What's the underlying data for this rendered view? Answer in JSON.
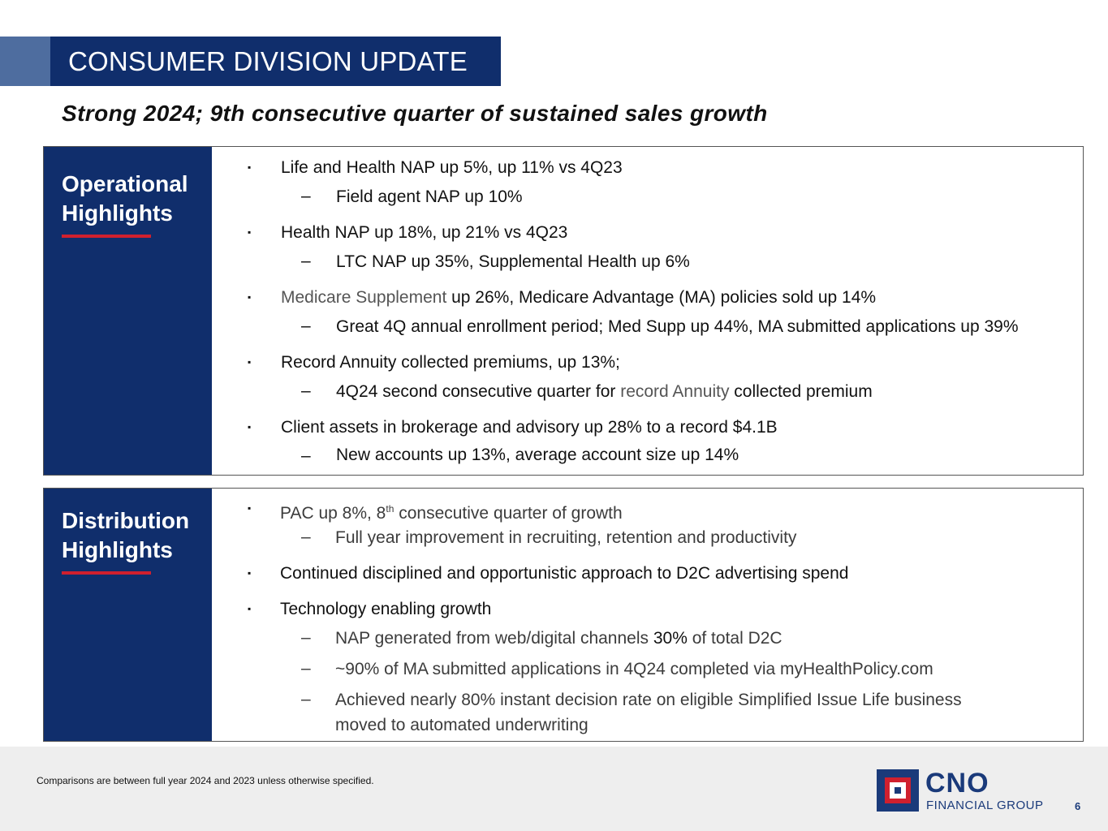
{
  "slide": {
    "title": "CONSUMER DIVISION UPDATE",
    "subtitle": "Strong 2024; 9th consecutive quarter of sustained sales growth"
  },
  "operational": {
    "heading_line1": "Operational",
    "heading_line2": "Highlights",
    "bullet_glyph": "▪",
    "dash_glyph": "–",
    "items": [
      {
        "text": "Life and Health NAP up 5%, up 11% vs 4Q23",
        "sub": [
          "Field agent NAP up 10%"
        ]
      },
      {
        "text": "Health NAP up 18%, up 21% vs 4Q23",
        "sub": [
          "LTC NAP up 35%, Supplemental Health up 6%"
        ]
      },
      {
        "text_gray": "Medicare Supplement",
        "text": " up 26%, Medicare Advantage (MA) policies sold up 14%",
        "sub": [
          "Great 4Q annual enrollment period; Med Supp up 44%, MA submitted applications up 39%"
        ]
      },
      {
        "text": "Record Annuity collected premiums, up 13%;",
        "sub_prefix": "4Q24 second consecutive quarter for ",
        "sub_gray": "record Annuity",
        "sub_suffix": " collected premium"
      },
      {
        "text": "Client assets in brokerage and advisory up 28% to a record $4.1B",
        "sub": [
          "New accounts up 13%, average account size up 14%"
        ]
      }
    ]
  },
  "distribution": {
    "heading_line1": "Distribution",
    "heading_line2": "Highlights",
    "items": [
      {
        "text_a": "PAC up 8%, 8",
        "sup": "th",
        "text_b": " consecutive quarter of growth",
        "sub": [
          "Full year improvement in recruiting, retention and productivity"
        ]
      },
      {
        "text": "Continued disciplined and opportunistic approach to D2C advertising spend"
      },
      {
        "text": "Technology enabling growth",
        "sub1_prefix": "NAP generated from web/digital channels ",
        "sub1_bold": "30%",
        "sub1_suffix": " of total D2C",
        "sub2": "~90% of MA submitted applications in 4Q24 completed via myHealthPolicy.com",
        "sub3_line1": "Achieved nearly 80% instant decision rate on eligible Simplified Issue Life business",
        "sub3_line2": "moved to automated underwriting"
      }
    ]
  },
  "footer": {
    "note": "Comparisons are between full year 2024 and 2023 unless otherwise specified.",
    "logo_main": "CNO",
    "logo_sub": "FINANCIAL GROUP",
    "page_number": "6"
  },
  "colors": {
    "navy": "#102e6c",
    "accent_red": "#d0202e",
    "accent_blue": "#4e6d9f"
  }
}
